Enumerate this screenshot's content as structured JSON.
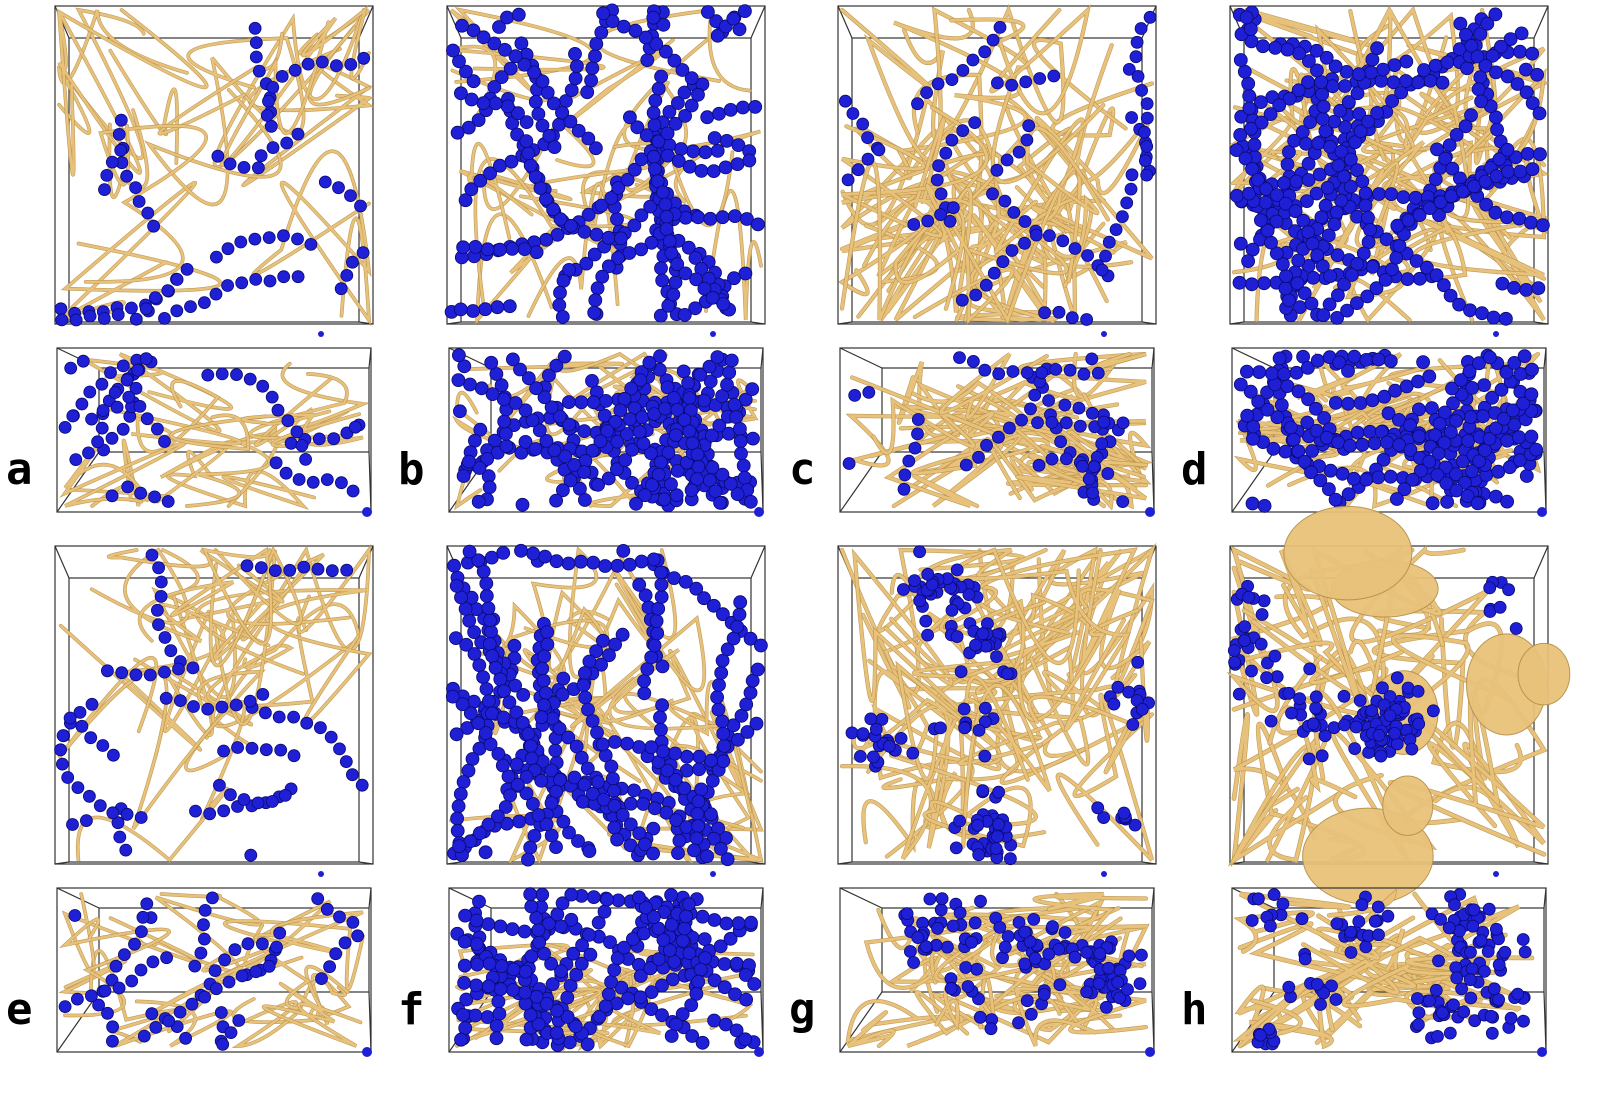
{
  "figure": {
    "colors": {
      "particle": "#1f1fd6",
      "particle_edge": "#0a0a70",
      "strand": "#e8c27a",
      "strand_edge": "#b8914a",
      "box": "#333333"
    },
    "panels": [
      {
        "label": "a",
        "particles": "sparse",
        "strands": "thin"
      },
      {
        "label": "b",
        "particles": "dense",
        "strands": "thin"
      },
      {
        "label": "c",
        "particles": "sparse",
        "strands": "network"
      },
      {
        "label": "d",
        "particles": "dense",
        "strands": "network"
      },
      {
        "label": "e",
        "particles": "sparse",
        "strands": "thin"
      },
      {
        "label": "f",
        "particles": "dense",
        "strands": "thin"
      },
      {
        "label": "g",
        "particles": "clustered",
        "strands": "network"
      },
      {
        "label": "h",
        "particles": "clustered",
        "strands": "membrane"
      }
    ]
  }
}
